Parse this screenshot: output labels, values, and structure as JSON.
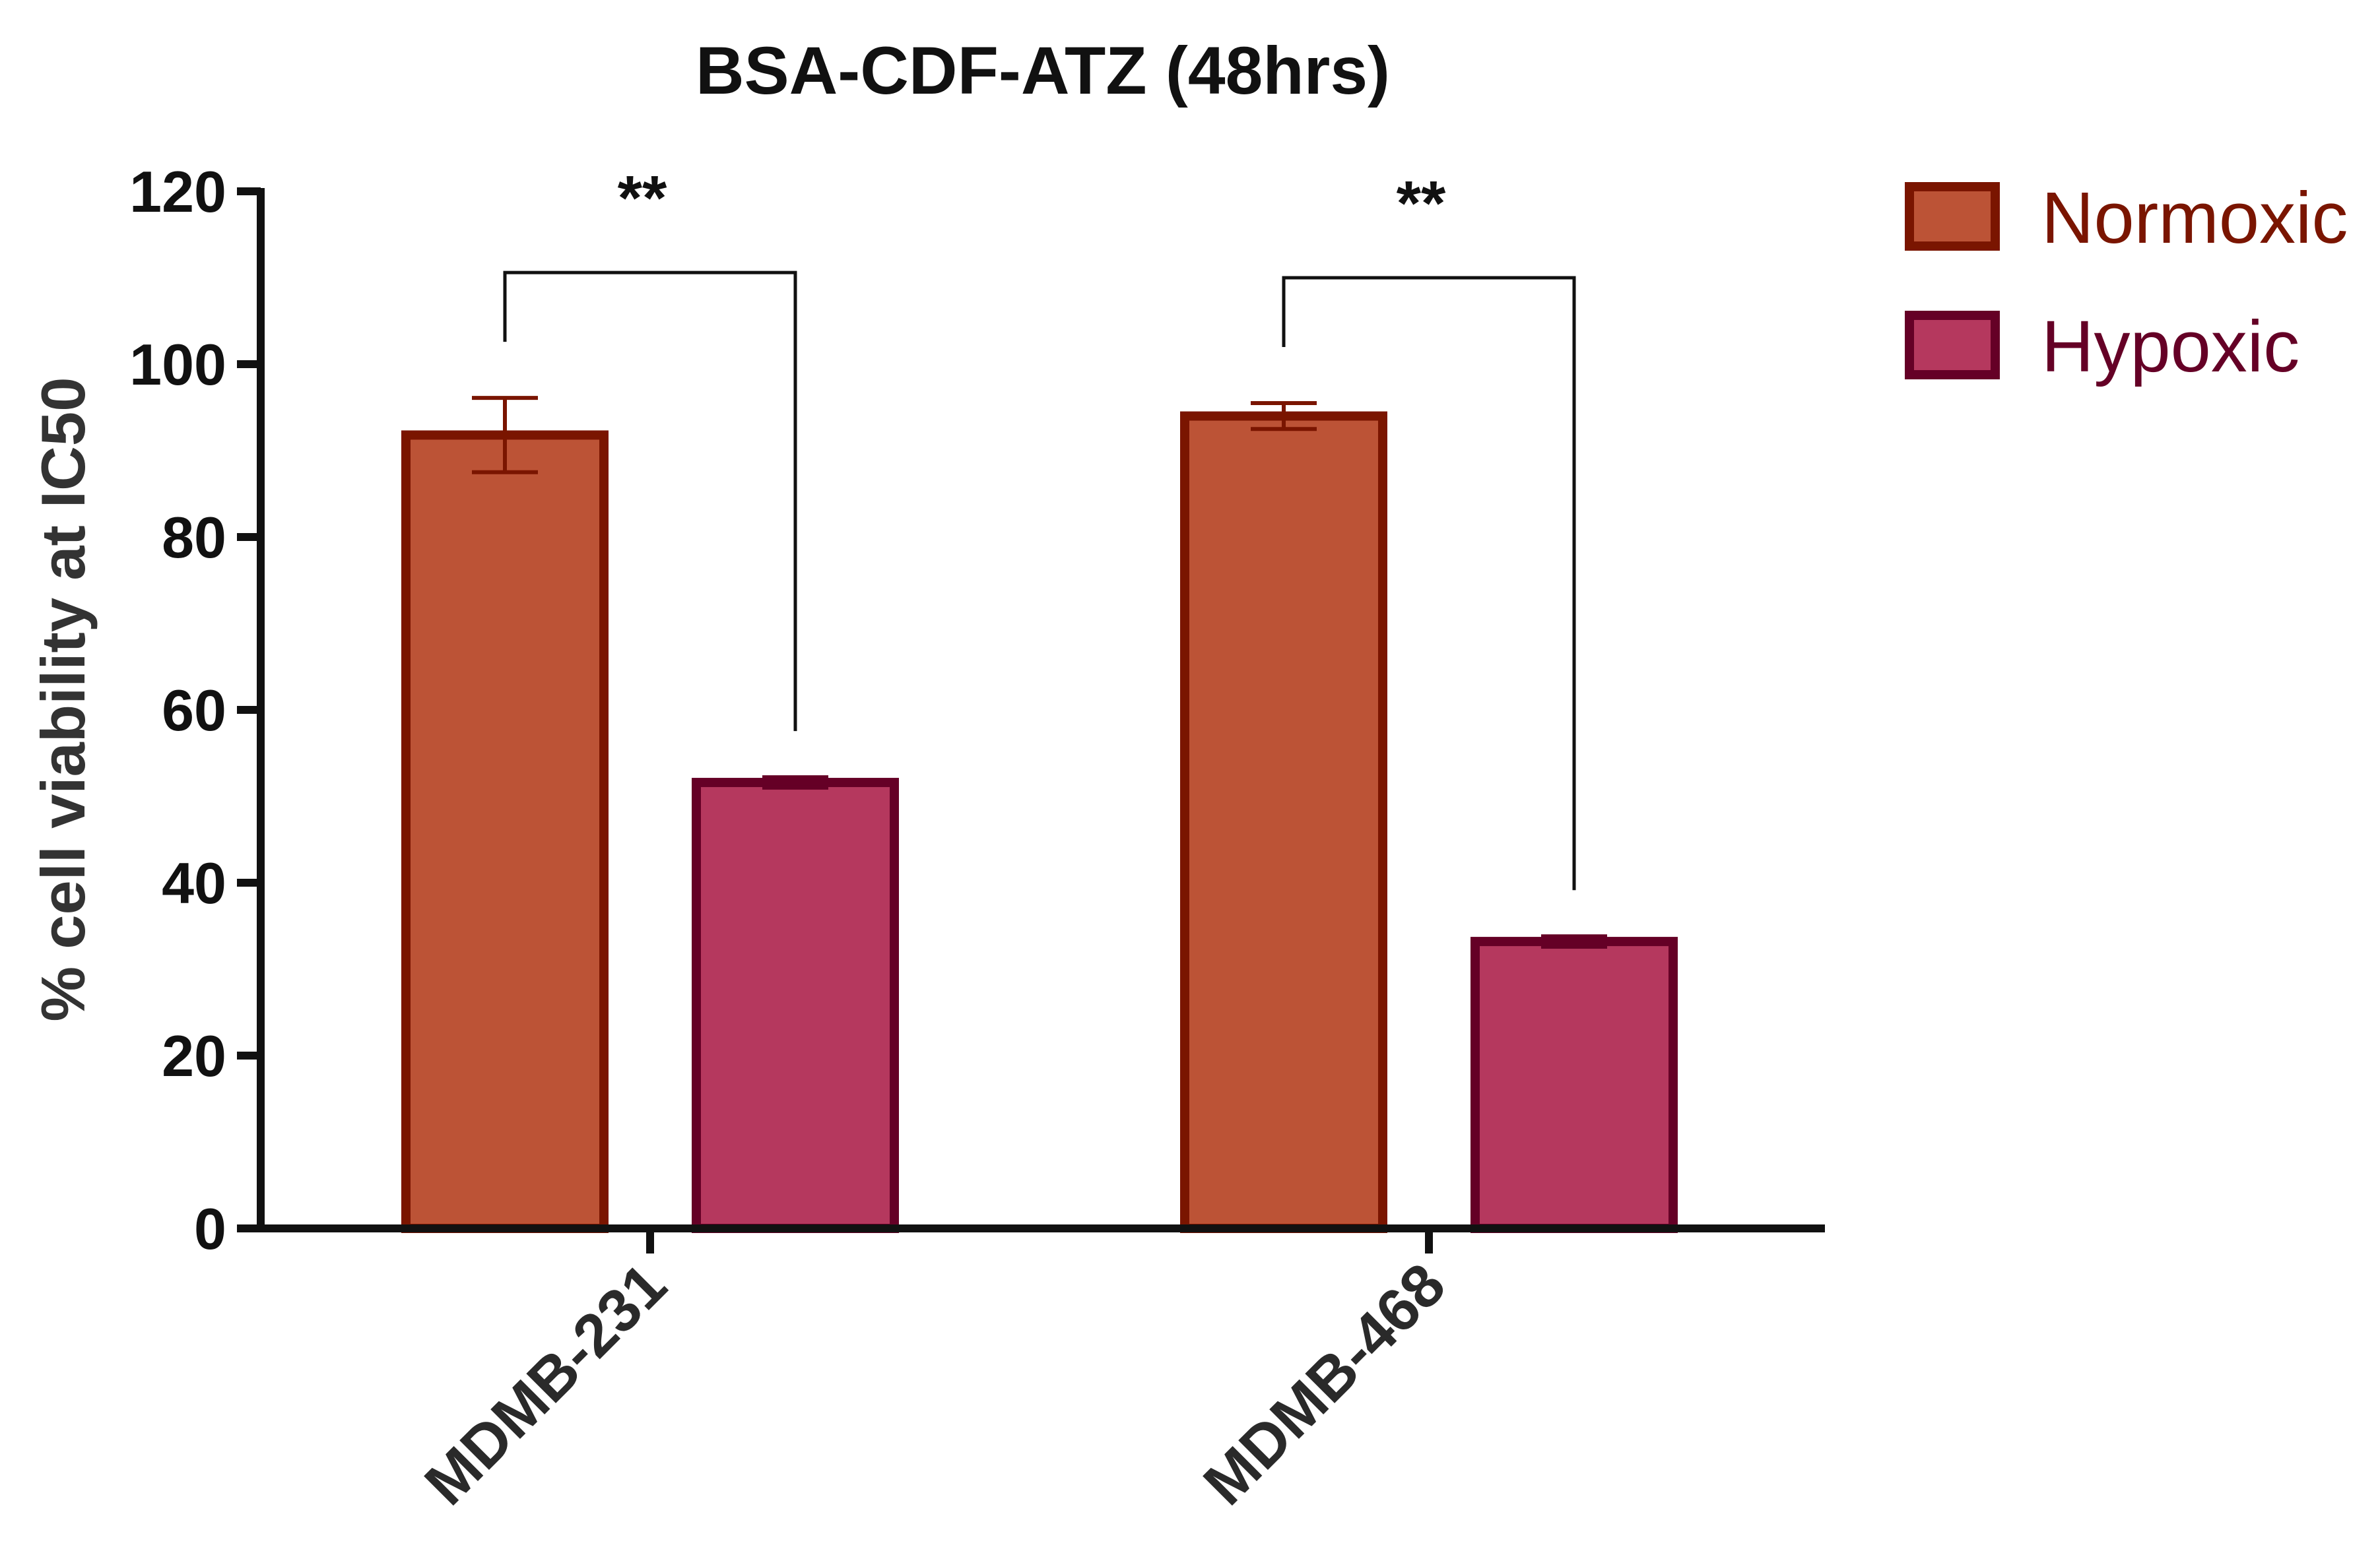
{
  "chart_data": {
    "type": "bar",
    "title": "BSA-CDF-ATZ (48hrs)",
    "xlabel": "",
    "ylabel": "% cell viability at IC50",
    "ylim": [
      0,
      120
    ],
    "yticks": [
      0,
      20,
      40,
      60,
      80,
      100,
      120
    ],
    "categories": [
      "MDMB-231",
      "MDMB-468"
    ],
    "series": [
      {
        "name": "Normoxic",
        "values": [
          91.8,
          94.0
        ],
        "errors": [
          4.3,
          1.5
        ],
        "fill": "#BC5336",
        "stroke": "#7A1500"
      },
      {
        "name": "Hypoxic",
        "values": [
          51.6,
          33.2
        ],
        "errors": [
          0.6,
          0.6
        ],
        "fill": "#B5385E",
        "stroke": "#650026"
      }
    ],
    "significance": [
      {
        "category": "MDMB-231",
        "label": "**"
      },
      {
        "category": "MDMB-468",
        "label": "**"
      }
    ],
    "legend": {
      "position": "top-right",
      "entries": [
        "Normoxic",
        "Hypoxic"
      ]
    },
    "grid": false
  }
}
